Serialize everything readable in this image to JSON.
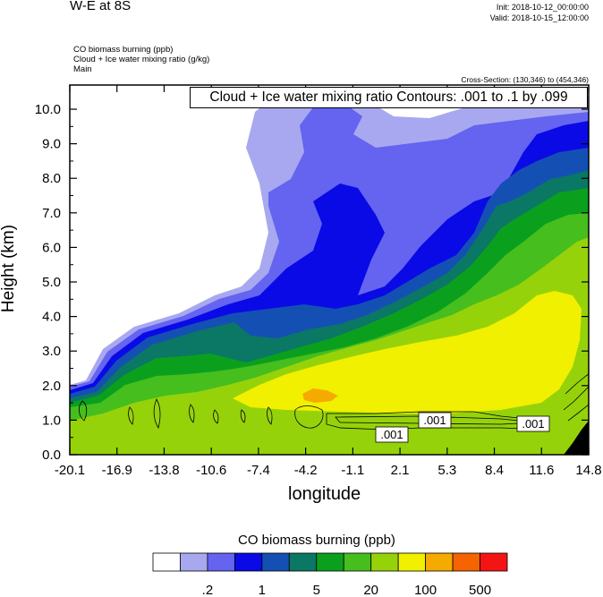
{
  "header": {
    "title": "W-E at 8S",
    "init": "Init: 2018-10-12_00:00:00",
    "valid": "Valid: 2018-10-15_12:00:00",
    "field1": "CO biomass burning   (ppb)",
    "field2": "Cloud + Ice water mixing ratio   (g/kg)",
    "field3": "Main",
    "cross_section": "Cross-Section: (130,346) to (454,346)"
  },
  "chart_data": {
    "type": "heatmap",
    "title": "W-E at 8S",
    "xlabel": "longitude",
    "ylabel": "Height (km)",
    "x_ticks": [
      "-20.1",
      "-16.9",
      "-13.8",
      "-10.6",
      "-7.4",
      "-4.2",
      "-1.1",
      "2.1",
      "5.3",
      "8.4",
      "11.6",
      "14.8"
    ],
    "y_ticks": [
      "0.0",
      "1.0",
      "2.0",
      "3.0",
      "4.0",
      "5.0",
      "6.0",
      "7.0",
      "8.0",
      "9.0",
      "10.0"
    ],
    "xlim": [
      -20.1,
      14.8
    ],
    "ylim": [
      0.0,
      10.7
    ],
    "contour_title": "Cloud + Ice water mixing ratio Contours: .001 to .1 by .099",
    "contour_labels": [
      ".001",
      ".001",
      ".001"
    ],
    "colorbar": {
      "title": "CO biomass burning  (ppb)",
      "labels": [
        ".2",
        "1",
        "5",
        "20",
        "100",
        "500"
      ],
      "colors": [
        "#ffffff",
        "#a8a8f0",
        "#6464f0",
        "#0a0ae6",
        "#1450b4",
        "#0a7864",
        "#0aa01e",
        "#46be1e",
        "#96d20a",
        "#f0f000",
        "#f5aa00",
        "#f56400",
        "#f51414"
      ]
    }
  }
}
